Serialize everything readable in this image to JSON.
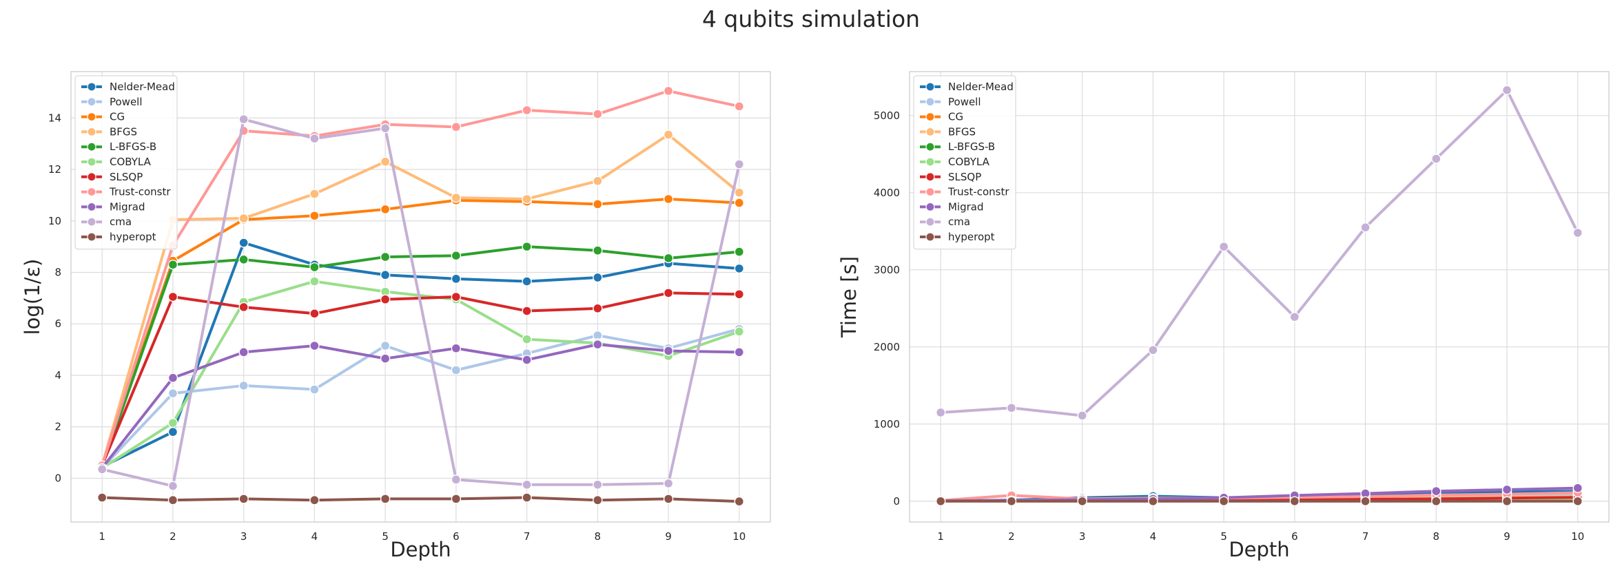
{
  "figure": {
    "suptitle": "4 qubits simulation"
  },
  "chart_data": [
    {
      "type": "line",
      "title": "",
      "xlabel": "Depth",
      "ylabel": "log(1/ε)",
      "x": [
        1,
        2,
        3,
        4,
        5,
        6,
        7,
        8,
        9,
        10
      ],
      "xticks": [
        "1",
        "2",
        "3",
        "4",
        "5",
        "6",
        "7",
        "8",
        "9",
        "10"
      ],
      "yticks": [
        0,
        2,
        4,
        6,
        8,
        10,
        12,
        14
      ],
      "ylim": [
        -1.7,
        15.8
      ],
      "grid": true,
      "legend": "upper-left",
      "series": [
        {
          "name": "Nelder-Mead",
          "color": "#1f77b4",
          "values": [
            0.45,
            1.8,
            9.15,
            8.3,
            7.9,
            7.75,
            7.65,
            7.8,
            8.35,
            8.15
          ]
        },
        {
          "name": "Powell",
          "color": "#aec7e8",
          "values": [
            0.4,
            3.3,
            3.6,
            3.45,
            5.15,
            4.2,
            4.85,
            5.55,
            5.05,
            5.8
          ]
        },
        {
          "name": "CG",
          "color": "#ff7f0e",
          "values": [
            0.5,
            8.45,
            10.05,
            10.2,
            10.45,
            10.8,
            10.75,
            10.65,
            10.85,
            10.7
          ]
        },
        {
          "name": "BFGS",
          "color": "#ffbb78",
          "values": [
            0.5,
            10.05,
            10.1,
            11.05,
            12.3,
            10.9,
            10.85,
            11.55,
            13.35,
            11.1
          ]
        },
        {
          "name": "L-BFGS-B",
          "color": "#2ca02c",
          "values": [
            0.45,
            8.3,
            8.5,
            8.2,
            8.6,
            8.65,
            9.0,
            8.85,
            8.55,
            8.8
          ]
        },
        {
          "name": "COBYLA",
          "color": "#98df8a",
          "values": [
            0.4,
            2.15,
            6.85,
            7.65,
            7.25,
            6.95,
            5.4,
            5.25,
            4.75,
            5.7
          ]
        },
        {
          "name": "SLSQP",
          "color": "#d62728",
          "values": [
            0.5,
            7.05,
            6.65,
            6.4,
            6.95,
            7.05,
            6.5,
            6.6,
            7.2,
            7.15
          ]
        },
        {
          "name": "Trust-constr",
          "color": "#ff9896",
          "values": [
            0.5,
            9.05,
            13.5,
            13.3,
            13.75,
            13.65,
            14.3,
            14.15,
            15.05,
            14.45
          ]
        },
        {
          "name": "Migrad",
          "color": "#9467bd",
          "values": [
            0.4,
            3.9,
            4.9,
            5.15,
            4.65,
            5.05,
            4.6,
            5.2,
            4.95,
            4.9
          ]
        },
        {
          "name": "cma",
          "color": "#c5b0d5",
          "values": [
            0.35,
            -0.3,
            13.95,
            13.2,
            13.6,
            -0.05,
            -0.25,
            -0.25,
            -0.2,
            12.2
          ]
        },
        {
          "name": "hyperopt",
          "color": "#8c564b",
          "values": [
            -0.75,
            -0.85,
            -0.8,
            -0.85,
            -0.8,
            -0.8,
            -0.75,
            -0.85,
            -0.8,
            -0.9
          ]
        }
      ]
    },
    {
      "type": "line",
      "title": "",
      "xlabel": "Depth",
      "ylabel": "Time [s]",
      "x": [
        1,
        2,
        3,
        4,
        5,
        6,
        7,
        8,
        9,
        10
      ],
      "xticks": [
        "1",
        "2",
        "3",
        "4",
        "5",
        "6",
        "7",
        "8",
        "9",
        "10"
      ],
      "yticks": [
        0,
        1000,
        2000,
        3000,
        4000,
        5000
      ],
      "ylim": [
        -270,
        5570
      ],
      "grid": true,
      "legend": "upper-left",
      "series": [
        {
          "name": "Nelder-Mead",
          "color": "#1f77b4",
          "values": [
            5,
            15,
            45,
            65,
            45,
            60,
            90,
            110,
            120,
            130
          ]
        },
        {
          "name": "Powell",
          "color": "#aec7e8",
          "values": [
            5,
            10,
            25,
            30,
            35,
            45,
            55,
            65,
            75,
            85
          ]
        },
        {
          "name": "CG",
          "color": "#ff7f0e",
          "values": [
            3,
            8,
            12,
            18,
            20,
            25,
            30,
            40,
            45,
            55
          ]
        },
        {
          "name": "BFGS",
          "color": "#ffbb78",
          "values": [
            3,
            8,
            12,
            18,
            20,
            25,
            30,
            40,
            50,
            60
          ]
        },
        {
          "name": "L-BFGS-B",
          "color": "#2ca02c",
          "values": [
            2,
            4,
            6,
            8,
            10,
            12,
            14,
            16,
            18,
            20
          ]
        },
        {
          "name": "COBYLA",
          "color": "#98df8a",
          "values": [
            2,
            4,
            6,
            8,
            10,
            12,
            14,
            16,
            18,
            20
          ]
        },
        {
          "name": "SLSQP",
          "color": "#d62728",
          "values": [
            2,
            5,
            8,
            10,
            15,
            20,
            25,
            30,
            40,
            50
          ]
        },
        {
          "name": "Trust-constr",
          "color": "#ff9896",
          "values": [
            10,
            75,
            30,
            40,
            40,
            50,
            60,
            80,
            90,
            110
          ]
        },
        {
          "name": "Migrad",
          "color": "#9467bd",
          "values": [
            5,
            10,
            20,
            30,
            45,
            75,
            100,
            130,
            150,
            170
          ]
        },
        {
          "name": "cma",
          "color": "#c5b0d5",
          "values": [
            1150,
            1210,
            1110,
            1960,
            3300,
            2390,
            3550,
            4440,
            5330,
            3480
          ]
        },
        {
          "name": "hyperopt",
          "color": "#8c564b",
          "values": [
            0,
            0,
            0,
            0,
            0,
            0,
            0,
            0,
            0,
            0
          ]
        }
      ]
    }
  ]
}
